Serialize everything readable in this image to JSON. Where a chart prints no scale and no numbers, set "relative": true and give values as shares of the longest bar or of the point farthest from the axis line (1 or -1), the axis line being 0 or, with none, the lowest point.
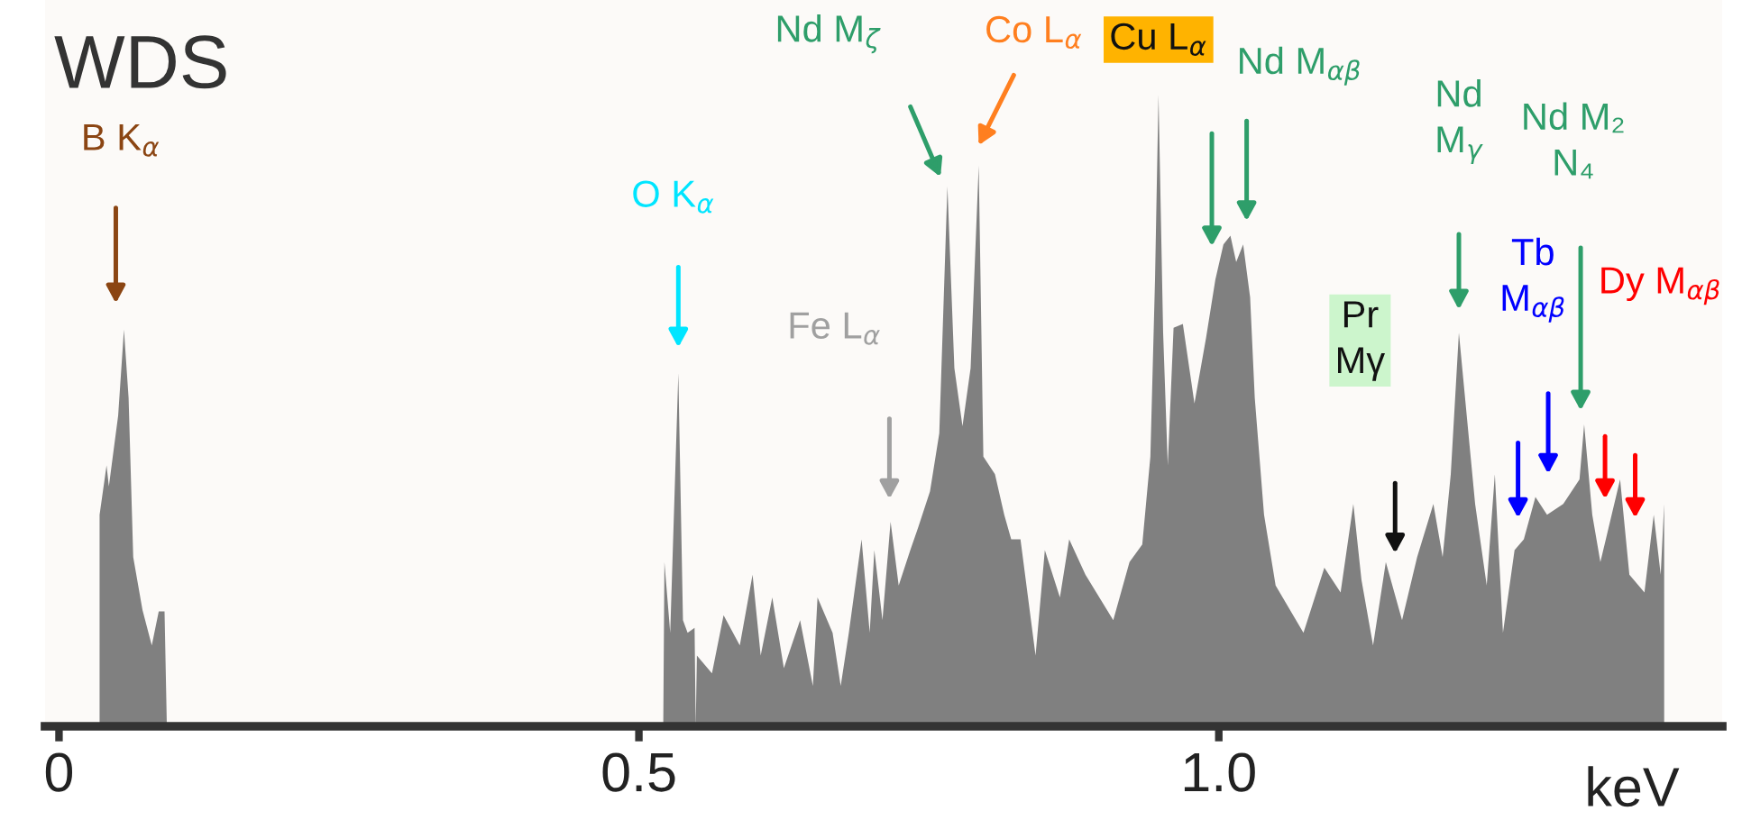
{
  "chart_data": {
    "type": "area",
    "title": "WDS",
    "xlabel": "keV",
    "relative": true,
    "color": "#808080",
    "xlim": [
      -0.012,
      1.434
    ],
    "xticks": [
      0,
      0.5,
      {
        "value": 1,
        "label": "1.0"
      }
    ],
    "x": [
      0.035,
      0.035,
      0.041,
      0.043,
      0.051,
      0.056,
      0.06,
      0.064,
      0.072,
      0.08,
      0.086,
      0.091,
      0.093,
      0.521,
      0.522,
      0.527,
      0.534,
      0.538,
      0.542,
      0.548,
      0.549,
      0.55,
      0.563,
      0.573,
      0.587,
      0.598,
      0.605,
      0.615,
      0.625,
      0.639,
      0.65,
      0.654,
      0.667,
      0.674,
      0.681,
      0.692,
      0.699,
      0.703,
      0.71,
      0.717,
      0.724,
      0.734,
      0.741,
      0.751,
      0.759,
      0.766,
      0.772,
      0.779,
      0.786,
      0.793,
      0.797,
      0.807,
      0.815,
      0.821,
      0.829,
      0.842,
      0.85,
      0.863,
      0.871,
      0.885,
      0.909,
      0.923,
      0.934,
      0.941,
      0.945,
      0.948,
      0.952,
      0.956,
      0.961,
      0.969,
      0.979,
      0.989,
      0.997,
      1.004,
      1.01,
      1.015,
      1.021,
      1.027,
      1.031,
      1.039,
      1.049,
      1.073,
      1.091,
      1.105,
      1.116,
      1.123,
      1.133,
      1.144,
      1.158,
      1.171,
      1.185,
      1.193,
      1.2,
      1.207,
      1.221,
      1.231,
      1.238,
      1.245,
      1.255,
      1.263,
      1.273,
      1.283,
      1.297,
      1.311,
      1.315,
      1.322,
      1.329,
      1.346,
      1.354,
      1.367,
      1.375,
      1.381,
      1.384,
      1.384
    ],
    "values": [
      0,
      0.335,
      0.413,
      0.38,
      0.492,
      0.628,
      0.52,
      0.268,
      0.184,
      0.128,
      0.182,
      0.182,
      0,
      0,
      0.26,
      0.148,
      0.559,
      0.168,
      0.148,
      0.156,
      0,
      0.112,
      0.084,
      0.176,
      0.128,
      0.24,
      0.112,
      0.204,
      0.092,
      0.168,
      0.064,
      0.204,
      0.148,
      0.064,
      0.148,
      0.296,
      0.148,
      0.279,
      0.168,
      0.324,
      0.223,
      0.279,
      0.316,
      0.372,
      0.464,
      0.855,
      0.567,
      0.475,
      0.567,
      0.888,
      0.427,
      0.399,
      0.335,
      0.296,
      0.296,
      0.112,
      0.279,
      0.204,
      0.296,
      0.24,
      0.168,
      0.26,
      0.288,
      0.427,
      0.707,
      1.0,
      0.623,
      0.413,
      0.631,
      0.637,
      0.511,
      0.615,
      0.707,
      0.763,
      0.777,
      0.735,
      0.763,
      0.679,
      0.52,
      0.335,
      0.223,
      0.148,
      0.251,
      0.212,
      0.352,
      0.232,
      0.128,
      0.26,
      0.168,
      0.268,
      0.352,
      0.268,
      0.399,
      0.623,
      0.352,
      0.223,
      0.399,
      0.148,
      0.279,
      0.296,
      0.363,
      0.335,
      0.352,
      0.391,
      0.478,
      0.335,
      0.26,
      0.391,
      0.24,
      0.212,
      0.335,
      0.24,
      0.352,
      0
    ],
    "annotations": [
      "B K$_{α}$",
      "O K$_{α}$",
      "Fe L$_{α}$",
      "Nd M$_{ζ}$",
      "Co L$_{α}$",
      "Cu L$_{α}$",
      "Nd M$_{αβ}$",
      "Nd\nM$_{γ}$",
      "Pr\nMγ",
      "Tb\nM$_{αβ}$",
      "Nd M₂\nN₄",
      "Dy M$_{αβ}$"
    ]
  }
}
